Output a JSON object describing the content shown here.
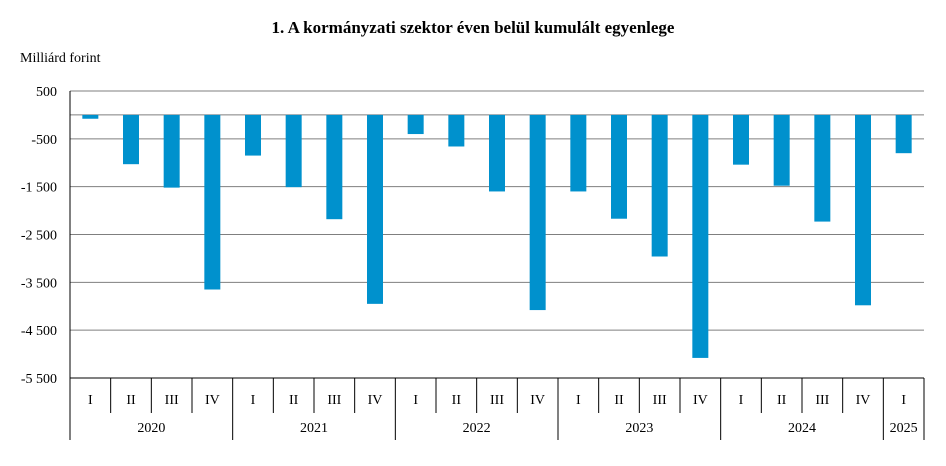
{
  "chart_data": {
    "type": "bar",
    "title": "1. A kormányzati szektor éven belül kumulált egyenlege",
    "ylabel": "Milliárd forint",
    "ylim": [
      -5500,
      500
    ],
    "yticks": [
      500,
      -500,
      -1500,
      -2500,
      -3500,
      -4500,
      -5500
    ],
    "ytick_labels": [
      "500",
      "-500",
      "-1 500",
      "-2 500",
      "-3 500",
      "-4 500",
      "-5 500"
    ],
    "grid": true,
    "bar_color": "#0091CD",
    "categories": [
      "I",
      "II",
      "III",
      "IV",
      "I",
      "II",
      "III",
      "IV",
      "I",
      "II",
      "III",
      "IV",
      "I",
      "II",
      "III",
      "IV",
      "I",
      "II",
      "III",
      "IV",
      "I"
    ],
    "groups": [
      {
        "label": "2020",
        "count": 4
      },
      {
        "label": "2021",
        "count": 4
      },
      {
        "label": "2022",
        "count": 4
      },
      {
        "label": "2023",
        "count": 4
      },
      {
        "label": "2024",
        "count": 4
      },
      {
        "label": "2025",
        "count": 1
      }
    ],
    "values": [
      -80,
      -1030,
      -1520,
      -3650,
      -850,
      -1510,
      -2180,
      -3950,
      -400,
      -660,
      -1600,
      -4080,
      -1600,
      -2170,
      -2960,
      -5080,
      -1040,
      -1480,
      -2230,
      -3980,
      -800
    ]
  }
}
